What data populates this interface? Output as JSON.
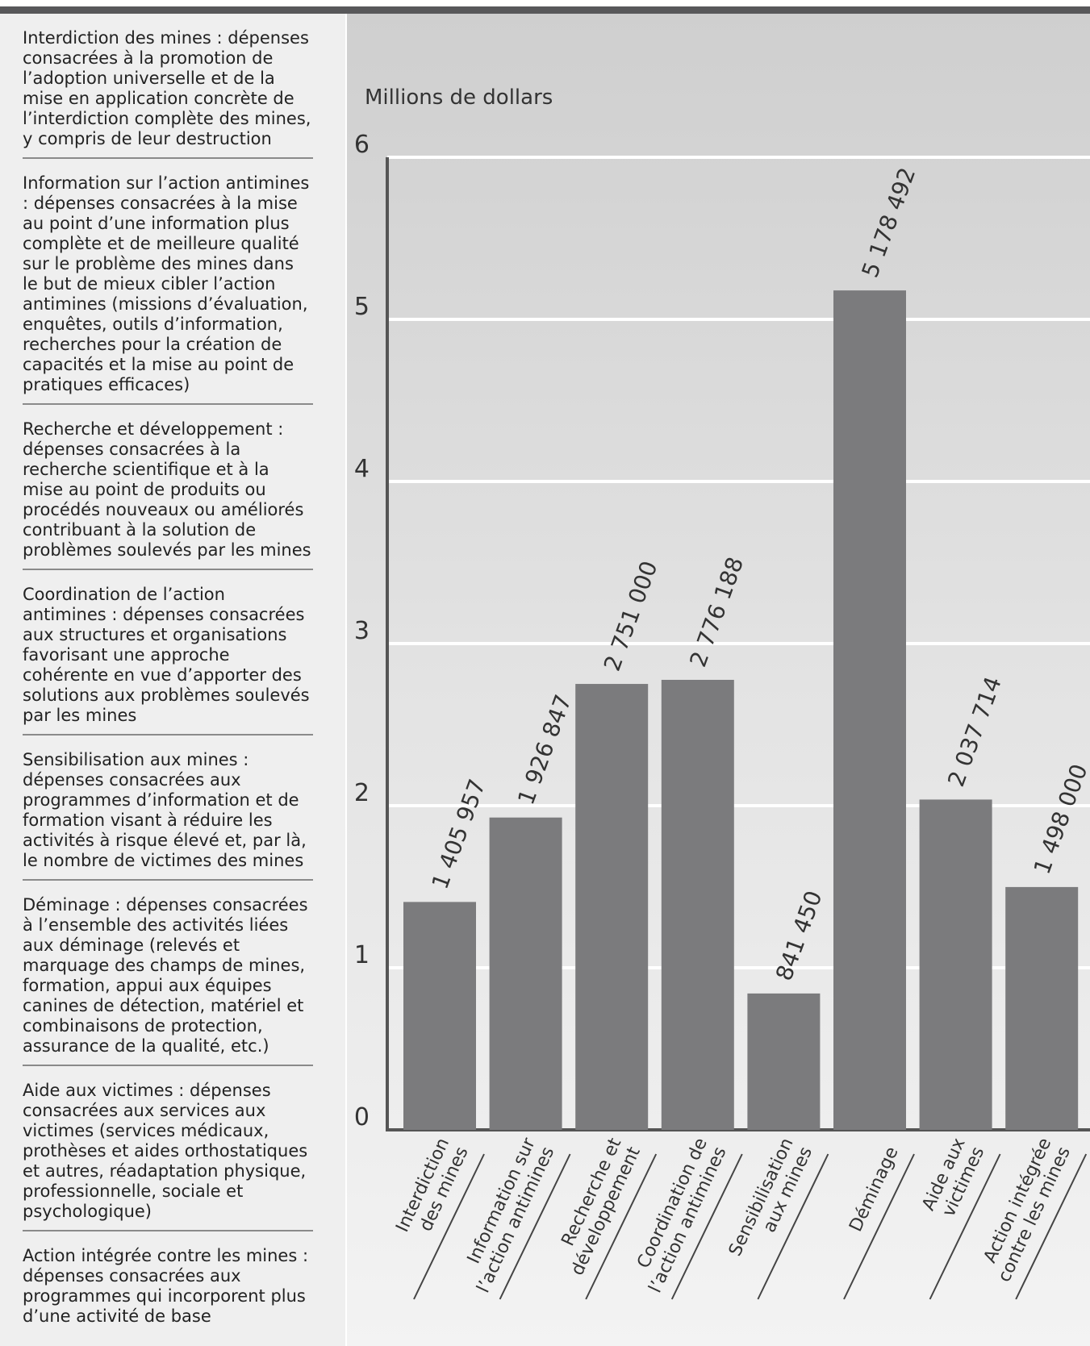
{
  "notes": [
    "Interdiction des mines : dépenses consacrées à la promotion de l’adoption universelle et de la mise en application concrète de l’interdiction complète des mines, y compris de leur destruction",
    "Information sur l’action antimines : dépenses consacrées à la mise au point d’une information plus complète et de meilleure qualité sur le problème des mines dans le but de mieux cibler l’action antimines (missions d’évaluation, enquêtes, outils d’information, recherches pour la création de capacités et la mise au point de pratiques efficaces)",
    "Recherche et développement : dépenses consacrées à la recherche scientifique et à la mise au point de produits ou procédés nouveaux ou améliorés contribuant à la solution de problèmes soulevés par les mines",
    "Coordination de l’action antimines : dépenses consacrées aux structures et organisations favorisant une approche cohérente en vue d’apporter des solutions aux problèmes soulevés par les mines",
    "Sensibilisation aux mines : dépenses consacrées aux programmes d’information et de formation visant à réduire les activités à risque élevé et, par là, le nombre de victimes des mines",
    "Déminage : dépenses consacrées à l’ensemble des activités liées aux déminage (relevés et marquage des champs de mines, formation, appui aux équipes canines de détection, matériel et combinaisons de protection, assurance de la qualité, etc.)",
    "Aide aux victimes : dépenses consacrées aux services aux victimes (services médicaux, prothèses et aides orthostatiques et autres, réadaptation physique, professionnelle, sociale et psychologique)",
    "Action intégrée contre les mines : dépenses consacrées aux programmes qui incorporent plus d’une activité de base"
  ],
  "chart_data": {
    "type": "bar",
    "y_label": "Millions de dollars",
    "categories": [
      [
        "Interdiction",
        "des mines"
      ],
      [
        "Information sur",
        "l’action antimines"
      ],
      [
        "Recherche et",
        "développement"
      ],
      [
        "Coordination de",
        "l’action antimines"
      ],
      [
        "Sensibilisation",
        "aux mines"
      ],
      [
        "Déminage"
      ],
      [
        "Aide aux",
        "victimes"
      ],
      [
        "Action intégrée",
        "contre les mines"
      ]
    ],
    "values": [
      1.405957,
      1.926847,
      2.751,
      2.776188,
      0.84145,
      5.178492,
      2.037714,
      1.498
    ],
    "value_labels": [
      "1 405 957",
      "1 926 847",
      "2 751 000",
      "2 776 188",
      "841 450",
      "5 178 492",
      "2 037 714",
      "1 498 000"
    ],
    "color": "#7b7b7d",
    "ylim": [
      0,
      6
    ],
    "yticks": [
      0,
      1,
      2,
      3,
      4,
      5,
      6
    ],
    "grid": true
  }
}
